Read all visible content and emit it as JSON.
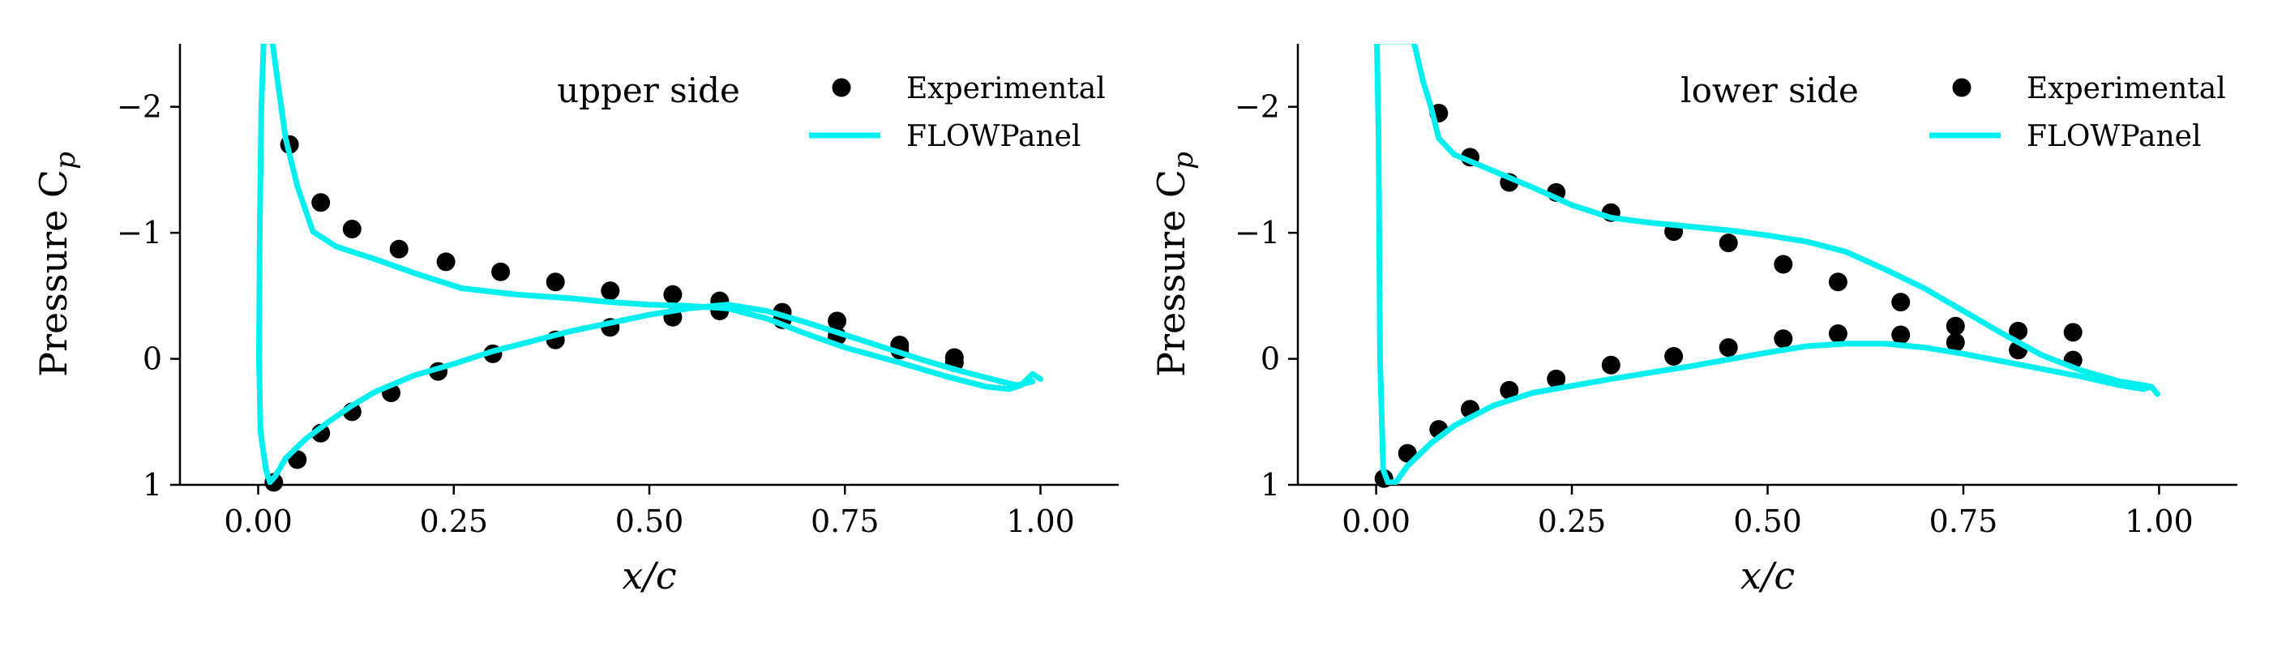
{
  "figure": {
    "background": "#ffffff",
    "colors": {
      "experimental": "#000000",
      "flowpanel": "#00f0f0"
    }
  },
  "chart_data": [
    {
      "type": "line",
      "annotation": "upper side",
      "xlabel": "x/c",
      "ylabel": "Pressure C",
      "ylabel_sub": "p",
      "xlim": [
        -0.1,
        1.1
      ],
      "ylim": [
        1.0,
        -2.5
      ],
      "y_inverted": true,
      "xticks": [
        0.0,
        0.25,
        0.5,
        0.75,
        1.0
      ],
      "xtick_labels": [
        "0.00",
        "0.25",
        "0.50",
        "0.75",
        "1.00"
      ],
      "yticks": [
        -2,
        -1,
        0,
        1
      ],
      "ytick_labels": [
        "−2",
        "−1",
        "0",
        "1"
      ],
      "grid": false,
      "legend_position": "top-right",
      "legend": [
        "Experimental",
        "FLOWPanel"
      ],
      "series": [
        {
          "name": "Experimental",
          "kind": "scatter",
          "color": "#000000",
          "points": [
            [
              0.04,
              -1.7
            ],
            [
              0.08,
              -1.24
            ],
            [
              0.12,
              -1.03
            ],
            [
              0.18,
              -0.87
            ],
            [
              0.24,
              -0.77
            ],
            [
              0.31,
              -0.69
            ],
            [
              0.38,
              -0.61
            ],
            [
              0.45,
              -0.54
            ],
            [
              0.53,
              -0.51
            ],
            [
              0.59,
              -0.46
            ],
            [
              0.67,
              -0.37
            ],
            [
              0.74,
              -0.3
            ],
            [
              0.82,
              -0.11
            ],
            [
              0.89,
              -0.01
            ],
            [
              0.02,
              0.98
            ],
            [
              0.05,
              0.8
            ],
            [
              0.08,
              0.59
            ],
            [
              0.12,
              0.42
            ],
            [
              0.17,
              0.27
            ],
            [
              0.23,
              0.1
            ],
            [
              0.3,
              -0.04
            ],
            [
              0.38,
              -0.15
            ],
            [
              0.45,
              -0.25
            ],
            [
              0.53,
              -0.33
            ],
            [
              0.59,
              -0.38
            ],
            [
              0.67,
              -0.31
            ],
            [
              0.74,
              -0.18
            ],
            [
              0.82,
              -0.07
            ],
            [
              0.89,
              0.03
            ]
          ]
        },
        {
          "name": "FLOWPanel",
          "kind": "line",
          "color": "#00f0f0",
          "points": [
            [
              1.0,
              0.16
            ],
            [
              0.99,
              0.12
            ],
            [
              0.975,
              0.21
            ],
            [
              0.96,
              0.24
            ],
            [
              0.93,
              0.22
            ],
            [
              0.88,
              0.14
            ],
            [
              0.82,
              0.03
            ],
            [
              0.75,
              -0.09
            ],
            [
              0.7,
              -0.2
            ],
            [
              0.65,
              -0.32
            ],
            [
              0.6,
              -0.4
            ],
            [
              0.55,
              -0.42
            ],
            [
              0.5,
              -0.43
            ],
            [
              0.45,
              -0.45
            ],
            [
              0.4,
              -0.48
            ],
            [
              0.33,
              -0.51
            ],
            [
              0.26,
              -0.56
            ],
            [
              0.2,
              -0.68
            ],
            [
              0.15,
              -0.79
            ],
            [
              0.1,
              -0.89
            ],
            [
              0.07,
              -1.01
            ],
            [
              0.05,
              -1.37
            ],
            [
              0.035,
              -1.75
            ],
            [
              0.025,
              -2.2
            ],
            [
              0.018,
              -2.52
            ],
            [
              0.007,
              -2.52
            ],
            [
              0.004,
              -2.0
            ],
            [
              0.002,
              -1.0
            ],
            [
              0.001,
              0.0
            ],
            [
              0.003,
              0.58
            ],
            [
              0.01,
              0.88
            ],
            [
              0.015,
              0.98
            ],
            [
              0.022,
              0.93
            ],
            [
              0.035,
              0.79
            ],
            [
              0.06,
              0.64
            ],
            [
              0.09,
              0.5
            ],
            [
              0.12,
              0.37
            ],
            [
              0.15,
              0.26
            ],
            [
              0.2,
              0.13
            ],
            [
              0.25,
              0.04
            ],
            [
              0.3,
              -0.06
            ],
            [
              0.4,
              -0.22
            ],
            [
              0.5,
              -0.35
            ],
            [
              0.55,
              -0.4
            ],
            [
              0.6,
              -0.43
            ],
            [
              0.65,
              -0.38
            ],
            [
              0.7,
              -0.29
            ],
            [
              0.75,
              -0.19
            ],
            [
              0.8,
              -0.09
            ],
            [
              0.85,
              0.01
            ],
            [
              0.9,
              0.1
            ],
            [
              0.95,
              0.18
            ],
            [
              0.97,
              0.21
            ],
            [
              0.99,
              0.18
            ]
          ]
        }
      ]
    },
    {
      "type": "line",
      "annotation": "lower side",
      "xlabel": "x/c",
      "ylabel": "Pressure C",
      "ylabel_sub": "p",
      "xlim": [
        -0.1,
        1.1
      ],
      "ylim": [
        1.0,
        -2.5
      ],
      "y_inverted": true,
      "xticks": [
        0.0,
        0.25,
        0.5,
        0.75,
        1.0
      ],
      "xtick_labels": [
        "0.00",
        "0.25",
        "0.50",
        "0.75",
        "1.00"
      ],
      "yticks": [
        -2,
        -1,
        0,
        1
      ],
      "ytick_labels": [
        "−2",
        "−1",
        "0",
        "1"
      ],
      "grid": false,
      "legend_position": "top-right",
      "legend": [
        "Experimental",
        "FLOWPanel"
      ],
      "series": [
        {
          "name": "Experimental",
          "kind": "scatter",
          "color": "#000000",
          "points": [
            [
              0.08,
              -1.95
            ],
            [
              0.12,
              -1.6
            ],
            [
              0.17,
              -1.4
            ],
            [
              0.23,
              -1.32
            ],
            [
              0.3,
              -1.16
            ],
            [
              0.38,
              -1.01
            ],
            [
              0.45,
              -0.92
            ],
            [
              0.52,
              -0.75
            ],
            [
              0.59,
              -0.61
            ],
            [
              0.67,
              -0.45
            ],
            [
              0.74,
              -0.26
            ],
            [
              0.82,
              -0.22
            ],
            [
              0.89,
              -0.21
            ],
            [
              0.01,
              0.95
            ],
            [
              0.04,
              0.75
            ],
            [
              0.08,
              0.56
            ],
            [
              0.12,
              0.4
            ],
            [
              0.17,
              0.25
            ],
            [
              0.23,
              0.16
            ],
            [
              0.3,
              0.05
            ],
            [
              0.38,
              -0.02
            ],
            [
              0.45,
              -0.09
            ],
            [
              0.52,
              -0.16
            ],
            [
              0.59,
              -0.2
            ],
            [
              0.67,
              -0.19
            ],
            [
              0.74,
              -0.13
            ],
            [
              0.82,
              -0.07
            ],
            [
              0.89,
              0.01
            ]
          ]
        },
        {
          "name": "FLOWPanel",
          "kind": "line",
          "color": "#00f0f0",
          "points": [
            [
              0.998,
              0.28
            ],
            [
              0.99,
              0.22
            ],
            [
              0.98,
              0.21
            ],
            [
              0.95,
              0.18
            ],
            [
              0.9,
              0.09
            ],
            [
              0.85,
              -0.03
            ],
            [
              0.8,
              -0.2
            ],
            [
              0.75,
              -0.38
            ],
            [
              0.7,
              -0.56
            ],
            [
              0.65,
              -0.71
            ],
            [
              0.6,
              -0.85
            ],
            [
              0.55,
              -0.93
            ],
            [
              0.5,
              -0.98
            ],
            [
              0.45,
              -1.02
            ],
            [
              0.4,
              -1.05
            ],
            [
              0.35,
              -1.08
            ],
            [
              0.3,
              -1.12
            ],
            [
              0.25,
              -1.22
            ],
            [
              0.2,
              -1.36
            ],
            [
              0.15,
              -1.49
            ],
            [
              0.1,
              -1.62
            ],
            [
              0.08,
              -1.75
            ],
            [
              0.07,
              -2.0
            ],
            [
              0.06,
              -2.2
            ],
            [
              0.048,
              -2.52
            ],
            [
              0.001,
              -2.52
            ],
            [
              0.003,
              -1.8
            ],
            [
              0.004,
              -1.0
            ],
            [
              0.005,
              0.0
            ],
            [
              0.009,
              0.88
            ],
            [
              0.015,
              0.98
            ],
            [
              0.025,
              0.98
            ],
            [
              0.04,
              0.85
            ],
            [
              0.07,
              0.67
            ],
            [
              0.1,
              0.53
            ],
            [
              0.15,
              0.37
            ],
            [
              0.2,
              0.27
            ],
            [
              0.3,
              0.16
            ],
            [
              0.4,
              0.06
            ],
            [
              0.5,
              -0.05
            ],
            [
              0.55,
              -0.1
            ],
            [
              0.6,
              -0.12
            ],
            [
              0.65,
              -0.12
            ],
            [
              0.7,
              -0.09
            ],
            [
              0.75,
              -0.04
            ],
            [
              0.8,
              0.02
            ],
            [
              0.85,
              0.08
            ],
            [
              0.9,
              0.14
            ],
            [
              0.95,
              0.21
            ],
            [
              0.98,
              0.24
            ],
            [
              0.99,
              0.22
            ]
          ]
        }
      ]
    }
  ]
}
